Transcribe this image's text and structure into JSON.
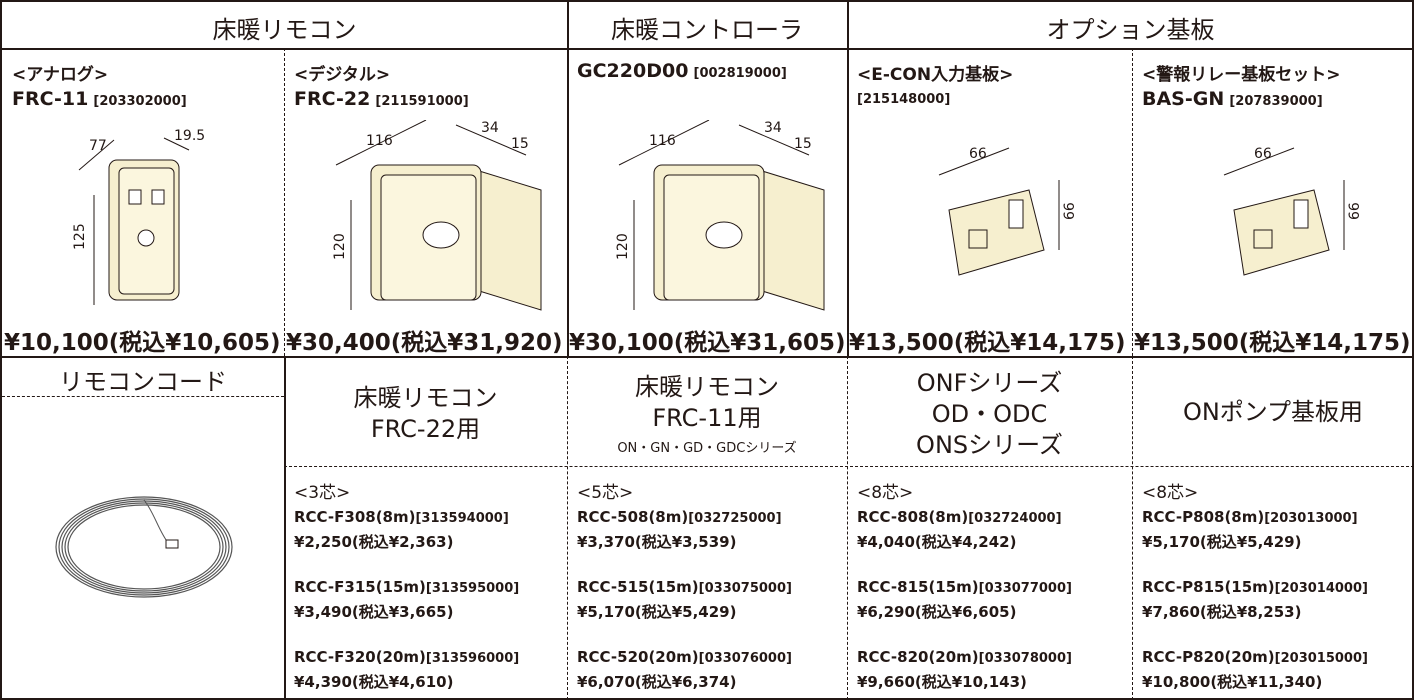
{
  "header": [
    "床暖リモコン",
    "床暖コントローラ",
    "オプション基板"
  ],
  "products": [
    {
      "type": "<アナログ>",
      "model": "FRC-11",
      "code": "[203302000]",
      "dims": [
        "77",
        "19.5",
        "125"
      ],
      "price": "¥10,100(税込¥10,605)"
    },
    {
      "type": "<デジタル>",
      "model": "FRC-22",
      "code": "[211591000]",
      "dims": [
        "116",
        "34",
        "15",
        "120"
      ],
      "price": "¥30,400(税込¥31,920)"
    },
    {
      "model": "GC220D00",
      "code": "[002819000]",
      "dims": [
        "116",
        "34",
        "15",
        "120"
      ],
      "price": "¥30,100(税込¥31,605)"
    },
    {
      "type": "<E-CON入力基板>",
      "code": "[215148000]",
      "dims": [
        "66",
        "66"
      ],
      "price": "¥13,500(税込¥14,175)"
    },
    {
      "type": "<警報リレー基板セット>",
      "model": "BAS-GN",
      "code": "[207839000]",
      "dims": [
        "66",
        "66"
      ],
      "price": "¥13,500(税込¥14,175)"
    }
  ],
  "cord": {
    "title": "リモコンコード",
    "groups": [
      {
        "lines": [
          "床暖リモコン",
          "FRC-22用"
        ],
        "core": "<3芯>",
        "items": [
          {
            "model": "RCC-F308(8m)",
            "code": "[313594000]",
            "price": "¥2,250(税込¥2,363)"
          },
          {
            "model": "RCC-F315(15m)",
            "code": "[313595000]",
            "price": "¥3,490(税込¥3,665)"
          },
          {
            "model": "RCC-F320(20m)",
            "code": "[313596000]",
            "price": "¥4,390(税込¥4,610)"
          }
        ]
      },
      {
        "lines": [
          "床暖リモコン",
          "FRC-11用"
        ],
        "note": "ON・GN・GD・GDCシリーズ",
        "core": "<5芯>",
        "items": [
          {
            "model": "RCC-508(8m)",
            "code": "[032725000]",
            "price": "¥3,370(税込¥3,539)"
          },
          {
            "model": "RCC-515(15m)",
            "code": "[033075000]",
            "price": "¥5,170(税込¥5,429)"
          },
          {
            "model": "RCC-520(20m)",
            "code": "[033076000]",
            "price": "¥6,070(税込¥6,374)"
          }
        ]
      },
      {
        "lines": [
          "ONFシリーズ",
          "OD・ODC",
          "ONSシリーズ"
        ],
        "core": "<8芯>",
        "items": [
          {
            "model": "RCC-808(8m)",
            "code": "[032724000]",
            "price": "¥4,040(税込¥4,242)"
          },
          {
            "model": "RCC-815(15m)",
            "code": "[033077000]",
            "price": "¥6,290(税込¥6,605)"
          },
          {
            "model": "RCC-820(20m)",
            "code": "[033078000]",
            "price": "¥9,660(税込¥10,143)"
          }
        ]
      },
      {
        "lines": [
          "ONポンプ基板用"
        ],
        "core": "<8芯>",
        "items": [
          {
            "model": "RCC-P808(8m)",
            "code": "[203013000]",
            "price": "¥5,170(税込¥5,429)"
          },
          {
            "model": "RCC-P815(15m)",
            "code": "[203014000]",
            "price": "¥7,860(税込¥8,253)"
          },
          {
            "model": "RCC-P820(20m)",
            "code": "[203015000]",
            "price": "¥10,800(税込¥11,340)"
          }
        ]
      }
    ]
  }
}
